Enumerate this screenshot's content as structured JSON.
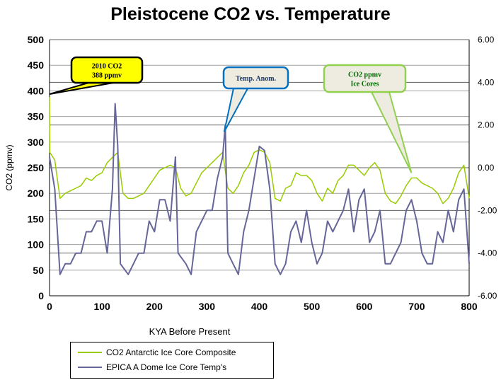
{
  "chart_data": {
    "type": "line",
    "title": "Pleistocene CO2 vs. Temperature",
    "xlabel": "KYA Before Present",
    "ylabel": "CO2 (ppmv)",
    "xlim": [
      0,
      800
    ],
    "ylim": [
      0,
      500
    ],
    "y2lim": [
      -6,
      6
    ],
    "x_ticks": [
      "0",
      "100",
      "200",
      "300",
      "400",
      "500",
      "600",
      "700",
      "800"
    ],
    "y_ticks": [
      "0",
      "50",
      "100",
      "150",
      "200",
      "250",
      "300",
      "350",
      "400",
      "450",
      "500"
    ],
    "y2_ticks": [
      "-6.00",
      "-4.00",
      "-2.00",
      "0.00",
      "2.00",
      "4.00",
      "6.00"
    ],
    "grid": true,
    "legend_position": "bottom-left",
    "series": [
      {
        "name": "CO2 Antarctic Ice Core Composite",
        "axis": "left",
        "color": "#99cc00",
        "x": [
          0,
          0.5,
          10,
          20,
          30,
          40,
          50,
          60,
          70,
          80,
          90,
          100,
          110,
          120,
          130,
          140,
          150,
          160,
          170,
          180,
          190,
          200,
          210,
          220,
          230,
          240,
          250,
          260,
          270,
          280,
          290,
          300,
          310,
          320,
          330,
          340,
          350,
          360,
          370,
          380,
          390,
          400,
          410,
          420,
          430,
          440,
          450,
          460,
          470,
          480,
          490,
          500,
          510,
          520,
          530,
          540,
          550,
          560,
          570,
          580,
          590,
          600,
          610,
          620,
          630,
          640,
          650,
          660,
          670,
          680,
          690,
          700,
          710,
          720,
          730,
          740,
          750,
          760,
          770,
          780,
          790,
          800
        ],
        "y": [
          388,
          280,
          265,
          190,
          200,
          205,
          210,
          215,
          230,
          225,
          235,
          240,
          260,
          270,
          280,
          200,
          190,
          190,
          195,
          200,
          215,
          230,
          245,
          250,
          255,
          250,
          210,
          195,
          200,
          220,
          240,
          250,
          260,
          270,
          280,
          210,
          200,
          215,
          240,
          255,
          280,
          285,
          280,
          260,
          190,
          185,
          210,
          215,
          240,
          235,
          235,
          225,
          200,
          185,
          210,
          200,
          225,
          235,
          255,
          255,
          245,
          235,
          250,
          260,
          245,
          200,
          185,
          180,
          195,
          215,
          230,
          230,
          220,
          215,
          210,
          200,
          180,
          190,
          210,
          240,
          255,
          190
        ]
      },
      {
        "name": "EPICA A Dome Ice Core Temp's",
        "axis": "right",
        "color": "#666699",
        "x": [
          0,
          10,
          20,
          30,
          40,
          50,
          60,
          70,
          80,
          90,
          100,
          110,
          120,
          125,
          130,
          135,
          150,
          160,
          170,
          180,
          190,
          200,
          210,
          220,
          230,
          240,
          245,
          260,
          270,
          280,
          290,
          300,
          310,
          320,
          330,
          335,
          340,
          350,
          360,
          370,
          380,
          390,
          400,
          410,
          420,
          430,
          440,
          450,
          460,
          470,
          480,
          490,
          500,
          510,
          520,
          530,
          540,
          550,
          560,
          570,
          580,
          590,
          600,
          610,
          620,
          630,
          640,
          650,
          660,
          670,
          680,
          690,
          700,
          710,
          720,
          730,
          740,
          750,
          760,
          770,
          780,
          790,
          800
        ],
        "y": [
          0.5,
          -1,
          -5,
          -4.5,
          -4.5,
          -4,
          -4,
          -3,
          -3,
          -2.5,
          -2.5,
          -4,
          -1,
          3,
          1,
          -4.5,
          -5,
          -4.5,
          -4,
          -4,
          -2.5,
          -3,
          -1.5,
          -1.5,
          -2.5,
          0.5,
          -4,
          -4.5,
          -5,
          -3,
          -2.5,
          -2,
          -2,
          -0.5,
          0.5,
          2,
          -4,
          -4.5,
          -5,
          -3,
          -2,
          -0.5,
          1,
          0.8,
          -1,
          -4.5,
          -5,
          -4.5,
          -3,
          -2.5,
          -3.5,
          -2,
          -3.5,
          -4.5,
          -4,
          -2.5,
          -3,
          -2.5,
          -2,
          -1,
          -3,
          -1.5,
          -1,
          -3.5,
          -3,
          -2,
          -4.5,
          -4.5,
          -4,
          -3.5,
          -2,
          -1.5,
          -2.5,
          -4,
          -4.5,
          -4.5,
          -3,
          -3.5,
          -2,
          -3,
          -1.5,
          -1,
          -4.5
        ]
      }
    ],
    "annotations": [
      {
        "lines": [
          "2010 CO2",
          "388 ppmv"
        ],
        "fill": "#ffff00",
        "border": "#000000",
        "text_color": "#000000"
      },
      {
        "lines": [
          "Temp. Anom."
        ],
        "fill": "#eeece1",
        "border": "#0070c0",
        "text_color": "#1f3864"
      },
      {
        "lines": [
          "CO2 ppmv",
          "Ice Cores"
        ],
        "fill": "#eeece1",
        "border": "#92d050",
        "text_color": "#006600"
      }
    ]
  }
}
